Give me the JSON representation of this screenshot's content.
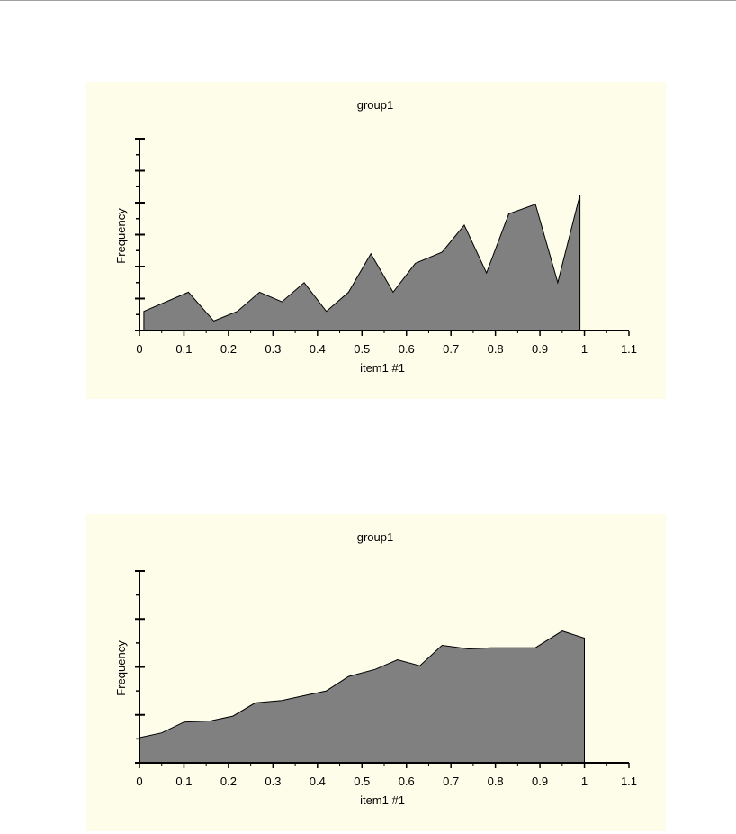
{
  "chart_data": [
    {
      "type": "area",
      "title": "group1",
      "xlabel": "item1 #1",
      "ylabel": "Frequency",
      "xlim": [
        0,
        1.1
      ],
      "xticks": [
        "0",
        "0.1",
        "0.2",
        "0.3",
        "0.4",
        "0.5",
        "0.6",
        "0.7",
        "0.8",
        "0.9",
        "1",
        "1.1"
      ],
      "ylim": [
        0,
        12
      ],
      "y_tick_count": 12,
      "y_major_every": 2,
      "grid": false,
      "fill_color": "#808080",
      "background": "#fdfdea",
      "series": [
        {
          "x": [
            0.01,
            0.11,
            0.167,
            0.22,
            0.27,
            0.32,
            0.37,
            0.42,
            0.47,
            0.52,
            0.57,
            0.62,
            0.68,
            0.73,
            0.78,
            0.83,
            0.89,
            0.94,
            0.99
          ],
          "values": [
            1.2,
            2.4,
            0.6,
            1.2,
            2.4,
            1.8,
            3.0,
            1.2,
            2.4,
            4.8,
            2.4,
            4.2,
            4.9,
            6.6,
            3.6,
            7.3,
            7.9,
            3.0,
            8.5
          ]
        }
      ]
    },
    {
      "type": "area",
      "title": "group1",
      "xlabel": "item1 #1",
      "ylabel": "Frequency",
      "xlim": [
        0,
        1.1
      ],
      "xticks": [
        "0",
        "0.1",
        "0.2",
        "0.3",
        "0.4",
        "0.5",
        "0.6",
        "0.7",
        "0.8",
        "0.9",
        "1",
        "1.1"
      ],
      "ylim": [
        0,
        8
      ],
      "y_tick_count": 8,
      "y_major_every": 2,
      "grid": false,
      "fill_color": "#808080",
      "background": "#fdfdea",
      "series": [
        {
          "x": [
            0,
            0.05,
            0.1,
            0.16,
            0.21,
            0.26,
            0.32,
            0.37,
            0.42,
            0.47,
            0.53,
            0.58,
            0.63,
            0.68,
            0.74,
            0.79,
            0.84,
            0.89,
            0.95,
            1.0
          ],
          "values": [
            1.05,
            1.25,
            1.7,
            1.75,
            1.95,
            2.5,
            2.6,
            2.8,
            3.0,
            3.6,
            3.9,
            4.3,
            4.05,
            4.9,
            4.75,
            4.8,
            4.8,
            4.8,
            5.5,
            5.2
          ]
        }
      ]
    }
  ]
}
